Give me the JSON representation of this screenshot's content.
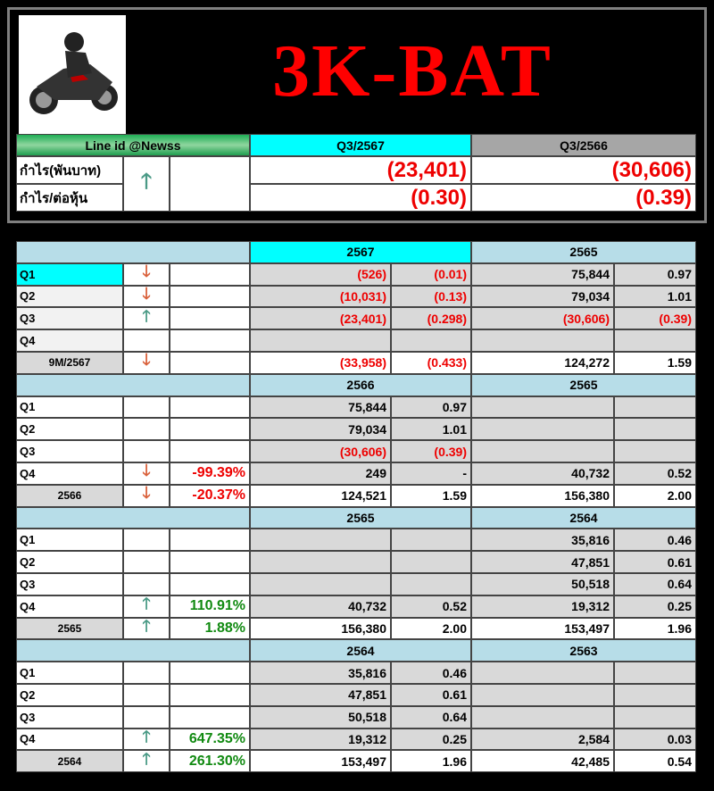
{
  "title": "3K-BAT",
  "summary": {
    "line_id": "Line id @Newss",
    "col1": "Q3/2567",
    "col2": "Q3/2566",
    "rows": [
      {
        "label": "กำไร(พันบาท)",
        "v1": "(23,401)",
        "v2": "(30,606)"
      },
      {
        "label": "กำไร/ต่อหุ้น",
        "v1": "(0.30)",
        "v2": "(0.39)"
      }
    ],
    "trend": "up"
  },
  "colors": {
    "cyan": "#00ffff",
    "light_blue": "#b7dde8",
    "gray": "#d9d9d9",
    "green": "#1f9e4f",
    "red": "#ff0000"
  },
  "sections": [
    {
      "y1": "2567",
      "y2": "2565",
      "rows": [
        {
          "label": "Q1",
          "arrow": "down",
          "pct": "",
          "a": "(526)",
          "b": "(0.01)",
          "c": "75,844",
          "d": "0.97"
        },
        {
          "label": "Q2",
          "arrow": "down",
          "pct": "",
          "a": "(10,031)",
          "b": "(0.13)",
          "c": "79,034",
          "d": "1.01"
        },
        {
          "label": "Q3",
          "arrow": "up",
          "pct": "",
          "a": "(23,401)",
          "b": "(0.298)",
          "c": "(30,606)",
          "d": "(0.39)"
        },
        {
          "label": "Q4",
          "arrow": "",
          "pct": "",
          "a": "",
          "b": "",
          "c": "",
          "d": ""
        },
        {
          "label": "9M/2567",
          "arrow": "down",
          "pct": "",
          "a": "(33,958)",
          "b": "(0.433)",
          "c": "124,272",
          "d": "1.59"
        }
      ]
    },
    {
      "y1": "2566",
      "y2": "2565",
      "rows": [
        {
          "label": "Q1",
          "arrow": "",
          "pct": "",
          "a": "75,844",
          "b": "0.97",
          "c": "",
          "d": ""
        },
        {
          "label": "Q2",
          "arrow": "",
          "pct": "",
          "a": "79,034",
          "b": "1.01",
          "c": "",
          "d": ""
        },
        {
          "label": "Q3",
          "arrow": "",
          "pct": "",
          "a": "(30,606)",
          "b": "(0.39)",
          "c": "",
          "d": ""
        },
        {
          "label": "Q4",
          "arrow": "down",
          "pct": "-99.39%",
          "a": "249",
          "b": "-",
          "c": "40,732",
          "d": "0.52"
        },
        {
          "label": "2566",
          "arrow": "down",
          "pct": "-20.37%",
          "a": "124,521",
          "b": "1.59",
          "c": "156,380",
          "d": "2.00"
        }
      ]
    },
    {
      "y1": "2565",
      "y2": "2564",
      "rows": [
        {
          "label": "Q1",
          "arrow": "",
          "pct": "",
          "a": "",
          "b": "",
          "c": "35,816",
          "d": "0.46"
        },
        {
          "label": "Q2",
          "arrow": "",
          "pct": "",
          "a": "",
          "b": "",
          "c": "47,851",
          "d": "0.61"
        },
        {
          "label": "Q3",
          "arrow": "",
          "pct": "",
          "a": "",
          "b": "",
          "c": "50,518",
          "d": "0.64"
        },
        {
          "label": "Q4",
          "arrow": "up",
          "pct": "110.91%",
          "a": "40,732",
          "b": "0.52",
          "c": "19,312",
          "d": "0.25"
        },
        {
          "label": "2565",
          "arrow": "up",
          "pct": "1.88%",
          "a": "156,380",
          "b": "2.00",
          "c": "153,497",
          "d": "1.96"
        }
      ]
    },
    {
      "y1": "2564",
      "y2": "2563",
      "rows": [
        {
          "label": "Q1",
          "arrow": "",
          "pct": "",
          "a": "35,816",
          "b": "0.46",
          "c": "",
          "d": ""
        },
        {
          "label": "Q2",
          "arrow": "",
          "pct": "",
          "a": "47,851",
          "b": "0.61",
          "c": "",
          "d": ""
        },
        {
          "label": "Q3",
          "arrow": "",
          "pct": "",
          "a": "50,518",
          "b": "0.64",
          "c": "",
          "d": ""
        },
        {
          "label": "Q4",
          "arrow": "up",
          "pct": "647.35%",
          "a": "19,312",
          "b": "0.25",
          "c": "2,584",
          "d": "0.03"
        },
        {
          "label": "2564",
          "arrow": "up",
          "pct": "261.30%",
          "a": "153,497",
          "b": "1.96",
          "c": "42,485",
          "d": "0.54"
        }
      ]
    }
  ]
}
